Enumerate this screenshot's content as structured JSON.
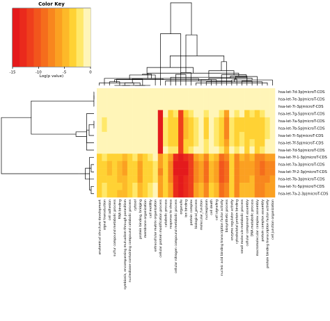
{
  "chart_data": {
    "type": "heatmap",
    "title": "",
    "xlabel": "",
    "ylabel": "",
    "color_key": {
      "title": "Color Key",
      "xlabel": "Log(p value)",
      "ticks": [
        "-15",
        "-10",
        "-5",
        "0"
      ],
      "range": [
        -15,
        0
      ],
      "colors": [
        "#e41a1c",
        "#ea2a1c",
        "#ef3f1c",
        "#f2561c",
        "#f56d1c",
        "#f8861e",
        "#fba021",
        "#fdb929",
        "#ffd234",
        "#ffe86a",
        "#fff5b8"
      ]
    },
    "rows": [
      "hsa-let-7d-3p|microT-CDS",
      "hsa-let-7e-3p|microT-CDS",
      "hsa-let-7i-3p|microT-CDS",
      "hsa-let-7g-5p|microT-CDS",
      "hsa-let-7a-5p|microT-CDS",
      "hsa-let-7b-5p|microT-CDS",
      "hsa-let-7i-5p|microT-CDS",
      "hsa-let-7f-5p|microT-CDS",
      "hsa-let-7d-5p|microT-CDS",
      "hsa-let-7f-1-3p|microT-CDS",
      "hsa-let-7a-3p|microT-CDS",
      "hsa-let-7f-2-3p|microT-CDS",
      "hsa-let-7b-3p|microT-CDS",
      "hsa-let-7c-5p|microT-CDS",
      "hsa-let-7a-2-3p|microT-CDS"
    ],
    "columns": [
      "anatomical structure development",
      "signal transduction",
      "cell adhesion",
      "sulfur compound metabolic process",
      "RNA binding",
      "symbiosis, encompassing mutualism through parasitism",
      "nucleobase-containing compound catabolic process",
      "cytosol",
      "protein binding, bridging",
      "membrane organization",
      "cell motility",
      "extracellular matrix organization",
      "cellular protein modification process",
      "catabolic process",
      "response to stress",
      "cellular nitrogen compound metabolic process",
      "organelle",
      "ion binding",
      "protein complex",
      "biological_process",
      "molecular_function",
      "nucleoplasm",
      "cell death",
      "cell signaling",
      "nucleic acid binding transcription factor activity",
      "biosynthetic process",
      "enzyme regulator activity",
      "cytoskeletal protein binding",
      "small molecule metabolic process",
      "cellular component assembly",
      "DNA metabolic process",
      "macromolecular complex assembly",
      "protein complex assembly",
      "protein binding transcription factor activity",
      "cell junction organization"
    ],
    "values": [
      [
        0,
        0,
        0,
        0,
        0,
        0,
        0,
        0,
        0,
        0,
        0,
        0,
        0,
        0,
        0,
        0,
        0,
        0,
        0,
        0,
        0,
        0,
        0,
        0,
        0,
        0,
        0,
        0,
        0,
        0,
        0,
        0,
        0,
        0,
        0
      ],
      [
        0,
        0,
        0,
        0,
        0,
        0,
        0,
        0,
        0,
        0,
        0,
        0,
        0,
        0,
        0,
        0,
        0,
        0,
        0,
        0,
        0,
        0,
        0,
        0,
        0,
        0,
        0,
        0,
        0,
        0,
        0,
        0,
        0,
        0,
        0
      ],
      [
        0,
        0,
        0,
        0,
        0,
        0,
        0,
        0,
        0,
        0,
        0,
        0,
        0,
        0,
        0,
        0,
        0,
        0,
        0,
        0,
        0,
        0,
        0,
        0,
        0,
        0,
        0,
        0,
        0,
        0,
        0,
        0,
        0,
        0,
        0
      ],
      [
        0,
        -1,
        0,
        0,
        0,
        0,
        0,
        0,
        0,
        0,
        0,
        0,
        -14,
        0,
        -3,
        -2,
        -12,
        -4,
        -2,
        0,
        -1,
        -2,
        0,
        0,
        -2,
        -6,
        0,
        -2,
        -1,
        -3,
        -2,
        -3,
        -2,
        0,
        0
      ],
      [
        0,
        -2,
        0,
        0,
        0,
        0,
        0,
        0,
        0,
        0,
        0,
        0,
        -14,
        -2,
        -3,
        -3,
        -12,
        -5,
        -4,
        -2,
        -1,
        -3,
        -1,
        -2,
        -3,
        -7,
        -2,
        -3,
        -3,
        -4,
        -3,
        -4,
        -3,
        -2,
        -1
      ],
      [
        0,
        -2,
        0,
        0,
        0,
        0,
        0,
        0,
        0,
        0,
        0,
        0,
        -14,
        -2,
        -3,
        -3,
        -12,
        -5,
        -4,
        -2,
        -1,
        -3,
        -1,
        -2,
        -3,
        -7,
        -2,
        -3,
        -3,
        -4,
        -3,
        -4,
        -3,
        -2,
        -1
      ],
      [
        0,
        -1,
        0,
        0,
        0,
        0,
        0,
        0,
        0,
        0,
        0,
        0,
        -14,
        -2,
        -3,
        -3,
        -12,
        -5,
        -3,
        -2,
        -1,
        -3,
        -1,
        -2,
        -3,
        -7,
        -2,
        -3,
        -2,
        -4,
        -3,
        -4,
        -3,
        -2,
        -1
      ],
      [
        0,
        -1,
        0,
        0,
        0,
        0,
        0,
        0,
        0,
        0,
        0,
        0,
        -14,
        -2,
        -3,
        -3,
        -12,
        -4,
        -3,
        -2,
        -1,
        -2,
        -1,
        -2,
        -3,
        -6,
        -2,
        -3,
        -2,
        -4,
        -2,
        -4,
        -3,
        -1,
        -1
      ],
      [
        0,
        0,
        0,
        0,
        0,
        0,
        0,
        0,
        0,
        0,
        0,
        0,
        -14,
        0,
        -2,
        -2,
        -11,
        -3,
        -2,
        0,
        0,
        -2,
        0,
        0,
        -2,
        -5,
        0,
        -2,
        -1,
        -3,
        -1,
        -3,
        -2,
        0,
        0
      ],
      [
        -3,
        -2,
        -4,
        -3,
        -4,
        -5,
        -3,
        -2,
        -5,
        -3,
        -2,
        -1,
        -6,
        -3,
        -6,
        -13,
        -14,
        -13,
        -12,
        -6,
        -5,
        -8,
        -4,
        -5,
        -9,
        -8,
        -3,
        -7,
        -5,
        -6,
        -5,
        -7,
        -8,
        -6,
        -6
      ],
      [
        -4,
        -3,
        -5,
        -4,
        -5,
        -6,
        -4,
        -3,
        -6,
        -4,
        -3,
        -2,
        -6,
        -3,
        -7,
        -14,
        -14,
        -14,
        -12,
        -7,
        -6,
        -9,
        -5,
        -6,
        -10,
        -9,
        -4,
        -8,
        -6,
        -6,
        -6,
        -8,
        -9,
        -7,
        -7
      ],
      [
        -4,
        -3,
        -5,
        -4,
        -5,
        -6,
        -4,
        -3,
        -6,
        -4,
        -3,
        -2,
        -7,
        -3,
        -7,
        -14,
        -14,
        -14,
        -12,
        -7,
        -6,
        -9,
        -5,
        -6,
        -10,
        -9,
        -4,
        -8,
        -6,
        -6,
        -6,
        -8,
        -9,
        -7,
        -7
      ],
      [
        -3,
        -3,
        -4,
        -4,
        -5,
        -5,
        -4,
        -3,
        -6,
        -4,
        -3,
        -2,
        -6,
        -3,
        -7,
        -13,
        -14,
        -13,
        -12,
        -7,
        -6,
        -9,
        -5,
        -6,
        -10,
        -9,
        -4,
        -8,
        -6,
        -6,
        -5,
        -7,
        -8,
        -7,
        -6
      ],
      [
        -3,
        -2,
        -4,
        -3,
        -4,
        -5,
        -3,
        -2,
        -5,
        -3,
        -2,
        -1,
        -6,
        -3,
        -6,
        -13,
        -14,
        -13,
        -11,
        -6,
        -5,
        -8,
        -4,
        -5,
        -9,
        -8,
        -3,
        -7,
        -5,
        -5,
        -5,
        -7,
        -8,
        -6,
        -6
      ],
      [
        -3,
        -2,
        -4,
        -3,
        -5,
        -5,
        -3,
        -2,
        -5,
        -3,
        -2,
        -1,
        -6,
        -3,
        -6,
        -13,
        -14,
        -13,
        -11,
        -6,
        -5,
        -8,
        -4,
        -5,
        -9,
        -8,
        -3,
        -7,
        -5,
        -5,
        -5,
        -7,
        -8,
        -6,
        -6
      ]
    ],
    "grid": false,
    "legend": "top-left"
  }
}
